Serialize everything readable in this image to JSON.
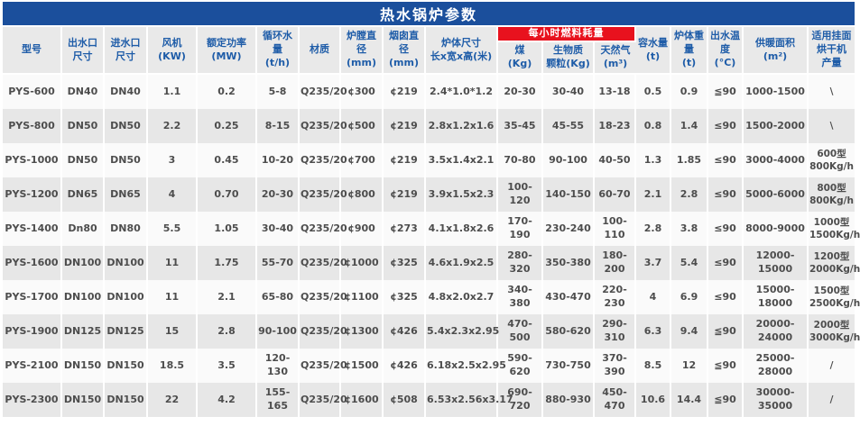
{
  "page": {
    "title": "热水锅炉参数"
  },
  "colors": {
    "title_bar_blue": "#1b4f9c",
    "fuel_banner_red": "#e8121e",
    "header_text_blue": "#1e5ca8"
  },
  "table": {
    "fuel_group_label": "每小时燃料耗量",
    "columns": [
      {
        "key": "model",
        "label": "型号"
      },
      {
        "key": "outlet",
        "label": "出水口\n尺寸"
      },
      {
        "key": "inlet",
        "label": "进水口\n尺寸"
      },
      {
        "key": "fan",
        "label": "风机\n(KW)"
      },
      {
        "key": "power",
        "label": "额定功率\n(MW)"
      },
      {
        "key": "circulation",
        "label": "循环水量\n(t/h)"
      },
      {
        "key": "material",
        "label": "材质"
      },
      {
        "key": "furnace-dia",
        "label": "炉膛直径\n(mm)"
      },
      {
        "key": "chimney-dia",
        "label": "烟囱直径\n(mm)"
      },
      {
        "key": "body-size",
        "label": "炉体尺寸\n长x宽x高(米)"
      },
      {
        "key": "coal",
        "label": "煤\n(Kg)"
      },
      {
        "key": "biomass",
        "label": "生物质\n颗粒(Kg)"
      },
      {
        "key": "gas",
        "label": "天然气\n(m³)"
      },
      {
        "key": "water-cap",
        "label": "容水量\n(t)"
      },
      {
        "key": "body-weight",
        "label": "炉体重量\n(t)"
      },
      {
        "key": "out-temp",
        "label": "出水温度\n(°C)"
      },
      {
        "key": "heating-area",
        "label": "供暖面积\n(m²)"
      },
      {
        "key": "dryer",
        "label": "适用挂面\n烘干机\n产量"
      }
    ],
    "rows": [
      [
        "PYS-600",
        "DN40",
        "DN40",
        "1.1",
        "0.2",
        "5-8",
        "Q235/20",
        "¢300",
        "¢219",
        "2.4*1.0*1.2",
        "20-30",
        "30-40",
        "13-18",
        "0.5",
        "0.9",
        "≦90",
        "1000-1500",
        "\\"
      ],
      [
        "PYS-800",
        "DN50",
        "DN50",
        "2.2",
        "0.25",
        "8-15",
        "Q235/20",
        "¢500",
        "¢219",
        "2.8x1.2x1.6",
        "35-45",
        "45-55",
        "18-23",
        "0.8",
        "1.4",
        "≤90",
        "1500-2000",
        "\\"
      ],
      [
        "PYS-1000",
        "DN50",
        "DN50",
        "3",
        "0.45",
        "10-20",
        "Q235/20",
        "¢700",
        "¢219",
        "3.5x1.4x2.1",
        "70-80",
        "90-100",
        "40-50",
        "1.3",
        "1.85",
        "≤90",
        "3000-4000",
        "600型\n800Kg/h"
      ],
      [
        "PYS-1200",
        "DN65",
        "DN65",
        "4",
        "0.70",
        "20-30",
        "Q235/20",
        "¢800",
        "¢219",
        "3.9x1.5x2.3",
        "100-120",
        "140-150",
        "60-70",
        "2.1",
        "2.8",
        "≤90",
        "5000-6000",
        "800型\n800Kg/h"
      ],
      [
        "PYS-1400",
        "Dn80",
        "DN80",
        "5.5",
        "1.05",
        "30-40",
        "Q235/20",
        "¢900",
        "¢273",
        "4.1x1.8x2.6",
        "170-190",
        "230-240",
        "100-110",
        "2.8",
        "3.8",
        "≤90",
        "8000-9000",
        "1000型\n1500Kg/h"
      ],
      [
        "PYS-1600",
        "DN100",
        "DN100",
        "11",
        "1.75",
        "55-70",
        "Q235/20",
        "¢1000",
        "¢325",
        "4.6x1.9x2.5",
        "280-320",
        "350-380",
        "180-200",
        "3.7",
        "5.4",
        "≤90",
        "12000-15000",
        "1200型\n2000Kg/h"
      ],
      [
        "PYS-1700",
        "DN100",
        "DN100",
        "11",
        "2.1",
        "65-80",
        "Q235/20",
        "¢1100",
        "¢325",
        "4.8x2.0x2.7",
        "340-380",
        "430-470",
        "220-230",
        "4",
        "6.9",
        "≤90",
        "15000-18000",
        "1500型\n2500Kg/h"
      ],
      [
        "PYS-1900",
        "DN125",
        "DN125",
        "15",
        "2.8",
        "90-100",
        "Q235/20",
        "¢1300",
        "¢426",
        "5.4x2.3x2.95",
        "470-500",
        "580-620",
        "290-310",
        "6.3",
        "9.4",
        "≦90",
        "20000-24000",
        "2000型\n3000Kg/h"
      ],
      [
        "PYS-2100",
        "DN150",
        "DN150",
        "18.5",
        "3.5",
        "120-130",
        "Q235/20",
        "¢1500",
        "¢426",
        "6.18x2.5x2.95",
        "590-620",
        "730-750",
        "370-390",
        "8.5",
        "12",
        "≦90",
        "25000-28000",
        "/"
      ],
      [
        "PYS-2300",
        "DN150",
        "DN150",
        "22",
        "4.2",
        "155-165",
        "Q235/20",
        "¢1600",
        "¢508",
        "6.53x2.56x3.17",
        "690-720",
        "880-930",
        "450-470",
        "10.6",
        "14.4",
        "≦90",
        "30000-35000",
        "/"
      ]
    ]
  }
}
